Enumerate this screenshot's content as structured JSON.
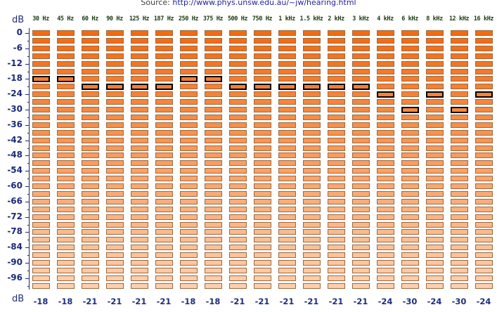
{
  "source": {
    "prefix": "Source: ",
    "url": "http://www.phys.unsw.edu.au/~jw/hearing.html"
  },
  "axis": {
    "unit_top": "dB",
    "unit_bottom": "dB",
    "labels": [
      "0",
      "-6",
      "-12",
      "-18",
      "-24",
      "-30",
      "-36",
      "-42",
      "-48",
      "-54",
      "-60",
      "-66",
      "-72",
      "-78",
      "-84",
      "-90",
      "-96"
    ]
  },
  "frequencies": [
    "30 Hz",
    "45 Hz",
    "60 Hz",
    "90 Hz",
    "125 Hz",
    "187 Hz",
    "250 Hz",
    "375 Hz",
    "500 Hz",
    "750 Hz",
    "1 kHz",
    "1.5 kHz",
    "2 kHz",
    "3 kHz",
    "4 kHz",
    "6 kHz",
    "8 kHz",
    "12 kHz",
    "16 kHz"
  ],
  "thresholds_db": [
    -18,
    -18,
    -21,
    -21,
    -21,
    -21,
    -18,
    -18,
    -21,
    -21,
    -21,
    -21,
    -21,
    -21,
    -24,
    -30,
    -24,
    -30,
    -24
  ],
  "threshold_labels": [
    "-18",
    "-18",
    "-21",
    "-21",
    "-21",
    "-21",
    "-18",
    "-18",
    "-21",
    "-21",
    "-21",
    "-21",
    "-21",
    "-21",
    "-24",
    "-30",
    "-24",
    "-30",
    "-24"
  ],
  "grid": {
    "top_db": 0,
    "step_db": 3,
    "levels": 34
  },
  "colors": {
    "loud": "#f26a12",
    "quiet": "#fecfae",
    "selected_border": "#000000",
    "axis": "#1c2a78"
  }
}
